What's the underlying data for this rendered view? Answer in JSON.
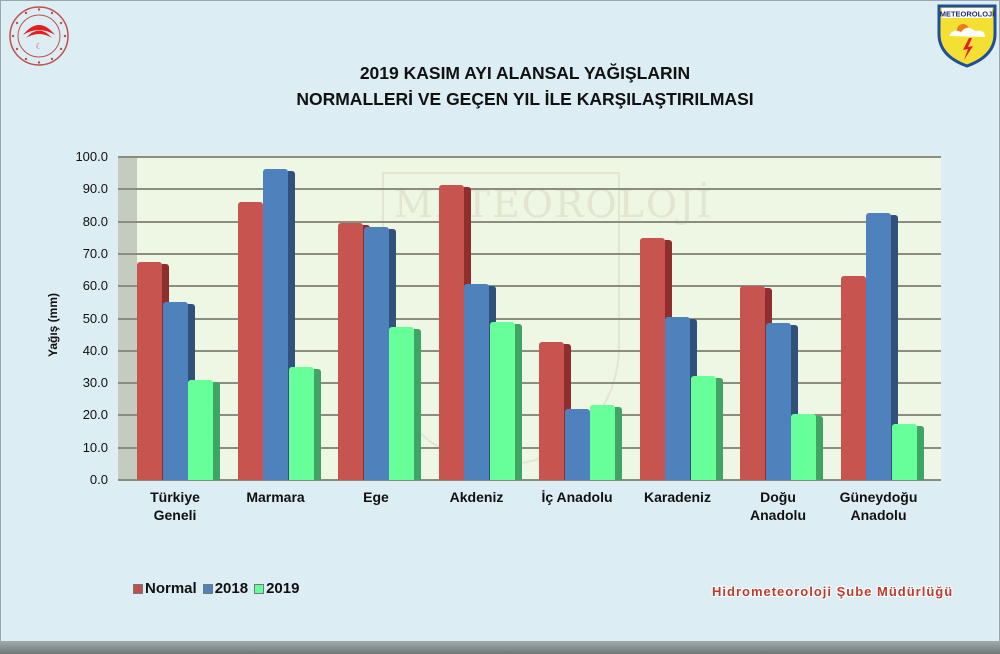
{
  "header": {
    "title_line1": "2019 KASIM AYI ALANSAL YAĞIŞLARIN",
    "title_line2": "NORMALLERİ VE GEÇEN YIL İLE KARŞILAŞTIRILMASI",
    "logo_left": "ministry-emblem",
    "logo_right": "METEOROLOJİ",
    "watermark": "METEOROLOJİ"
  },
  "footer": {
    "credit": "Hidrometeoroloji Şube Müdürlüğü"
  },
  "colors": {
    "normal": "#c85450",
    "2018": "#4f81bd",
    "2019": "#66ff99",
    "plot_bg": "#eef6e4",
    "page_bg": "#dcedf3"
  },
  "chart_data": {
    "type": "bar",
    "title": "2019 KASIM AYI ALANSAL YAĞIŞLARIN NORMALLERİ VE GEÇEN YIL İLE KARŞILAŞTIRILMASI",
    "xlabel": "",
    "ylabel": "Yağış (mm)",
    "ylim": [
      0,
      100
    ],
    "yticks": [
      "0.0",
      "10.0",
      "20.0",
      "30.0",
      "40.0",
      "50.0",
      "60.0",
      "70.0",
      "80.0",
      "90.0",
      "100.0"
    ],
    "grid": true,
    "legend_position": "bottom-left",
    "categories": [
      "Türkiye Geneli",
      "Marmara",
      "Ege",
      "Akdeniz",
      "İç Anadolu",
      "Karadeniz",
      "Doğu Anadolu",
      "Güneydoğu Anadolu"
    ],
    "category_lines": [
      [
        "Türkiye",
        "Geneli"
      ],
      [
        "Marmara",
        ""
      ],
      [
        "Ege",
        ""
      ],
      [
        "Akdeniz",
        ""
      ],
      [
        "İç Anadolu",
        ""
      ],
      [
        "Karadeniz",
        ""
      ],
      [
        "Doğu",
        "Anadolu"
      ],
      [
        "Güneydoğu",
        "Anadolu"
      ]
    ],
    "series": [
      {
        "name": "Normal",
        "values": [
          67.5,
          86.0,
          79.5,
          91.3,
          42.7,
          74.9,
          60.0,
          63.1
        ]
      },
      {
        "name": "2018",
        "values": [
          55.1,
          96.3,
          78.3,
          60.7,
          22.0,
          50.4,
          48.6,
          82.6
        ]
      },
      {
        "name": "2019",
        "values": [
          30.9,
          35.0,
          47.4,
          49.0,
          23.2,
          32.2,
          20.4,
          17.3
        ]
      }
    ]
  }
}
